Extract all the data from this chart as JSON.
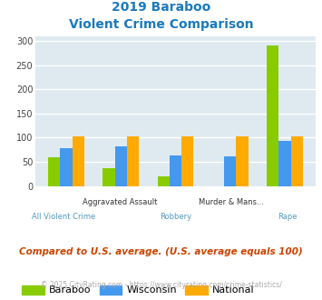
{
  "title_line1": "2019 Baraboo",
  "title_line2": "Violent Crime Comparison",
  "title_color": "#1a7abf",
  "categories": [
    "All Violent Crime",
    "Aggravated Assault",
    "Robbery",
    "Murder & Mans...",
    "Rape"
  ],
  "upper_labels": [
    "",
    "Aggravated Assault",
    "",
    "Murder & Mans...",
    ""
  ],
  "lower_labels": [
    "All Violent Crime",
    "",
    "Robbery",
    "",
    "Rape"
  ],
  "series": {
    "Baraboo": [
      60,
      36,
      20,
      0,
      290
    ],
    "Wisconsin": [
      78,
      82,
      63,
      61,
      93
    ],
    "National": [
      102,
      102,
      102,
      102,
      102
    ]
  },
  "colors": {
    "Baraboo": "#88cc00",
    "Wisconsin": "#4499ee",
    "National": "#ffaa00"
  },
  "ylim": [
    0,
    310
  ],
  "yticks": [
    0,
    50,
    100,
    150,
    200,
    250,
    300
  ],
  "plot_bg": "#deeaf0",
  "grid_color": "#ffffff",
  "footer_text": "Compared to U.S. average. (U.S. average equals 100)",
  "footer_color": "#cc4400",
  "copyright_text": "© 2025 CityRating.com - https://www.cityrating.com/crime-statistics/",
  "copyright_color": "#aaaaaa",
  "xlabel_upper_color": "#333333",
  "xlabel_lower_color": "#5599bb",
  "bar_width": 0.22
}
